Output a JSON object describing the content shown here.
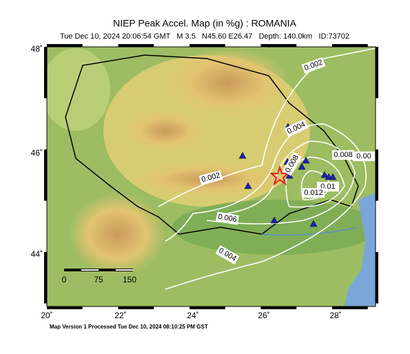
{
  "header": {
    "title": "NIEP Peak Accel. Map (in %g) : ROMANIA",
    "subtitle": "Tue Dec 10, 2024 20:06:54 GMT   M 3.5   N45.60 E26.47   Depth: 140.0km   ID:73702"
  },
  "map": {
    "lon_ticks": [
      "20˚",
      "22˚",
      "24˚",
      "26˚",
      "28˚"
    ],
    "lat_ticks": [
      "48˚",
      "46˚",
      "44˚"
    ],
    "contour_labels": [
      "0.002",
      "0.002",
      "0.004",
      "0.004",
      "0.006",
      "0.008",
      "0.008",
      "0.00",
      "0.01",
      "0.012"
    ],
    "scale_labels": [
      "0",
      "75",
      "150"
    ]
  },
  "footer": "Map Version 1 Processed Tue Dec 10, 2024 08:10:25 PM GST"
}
